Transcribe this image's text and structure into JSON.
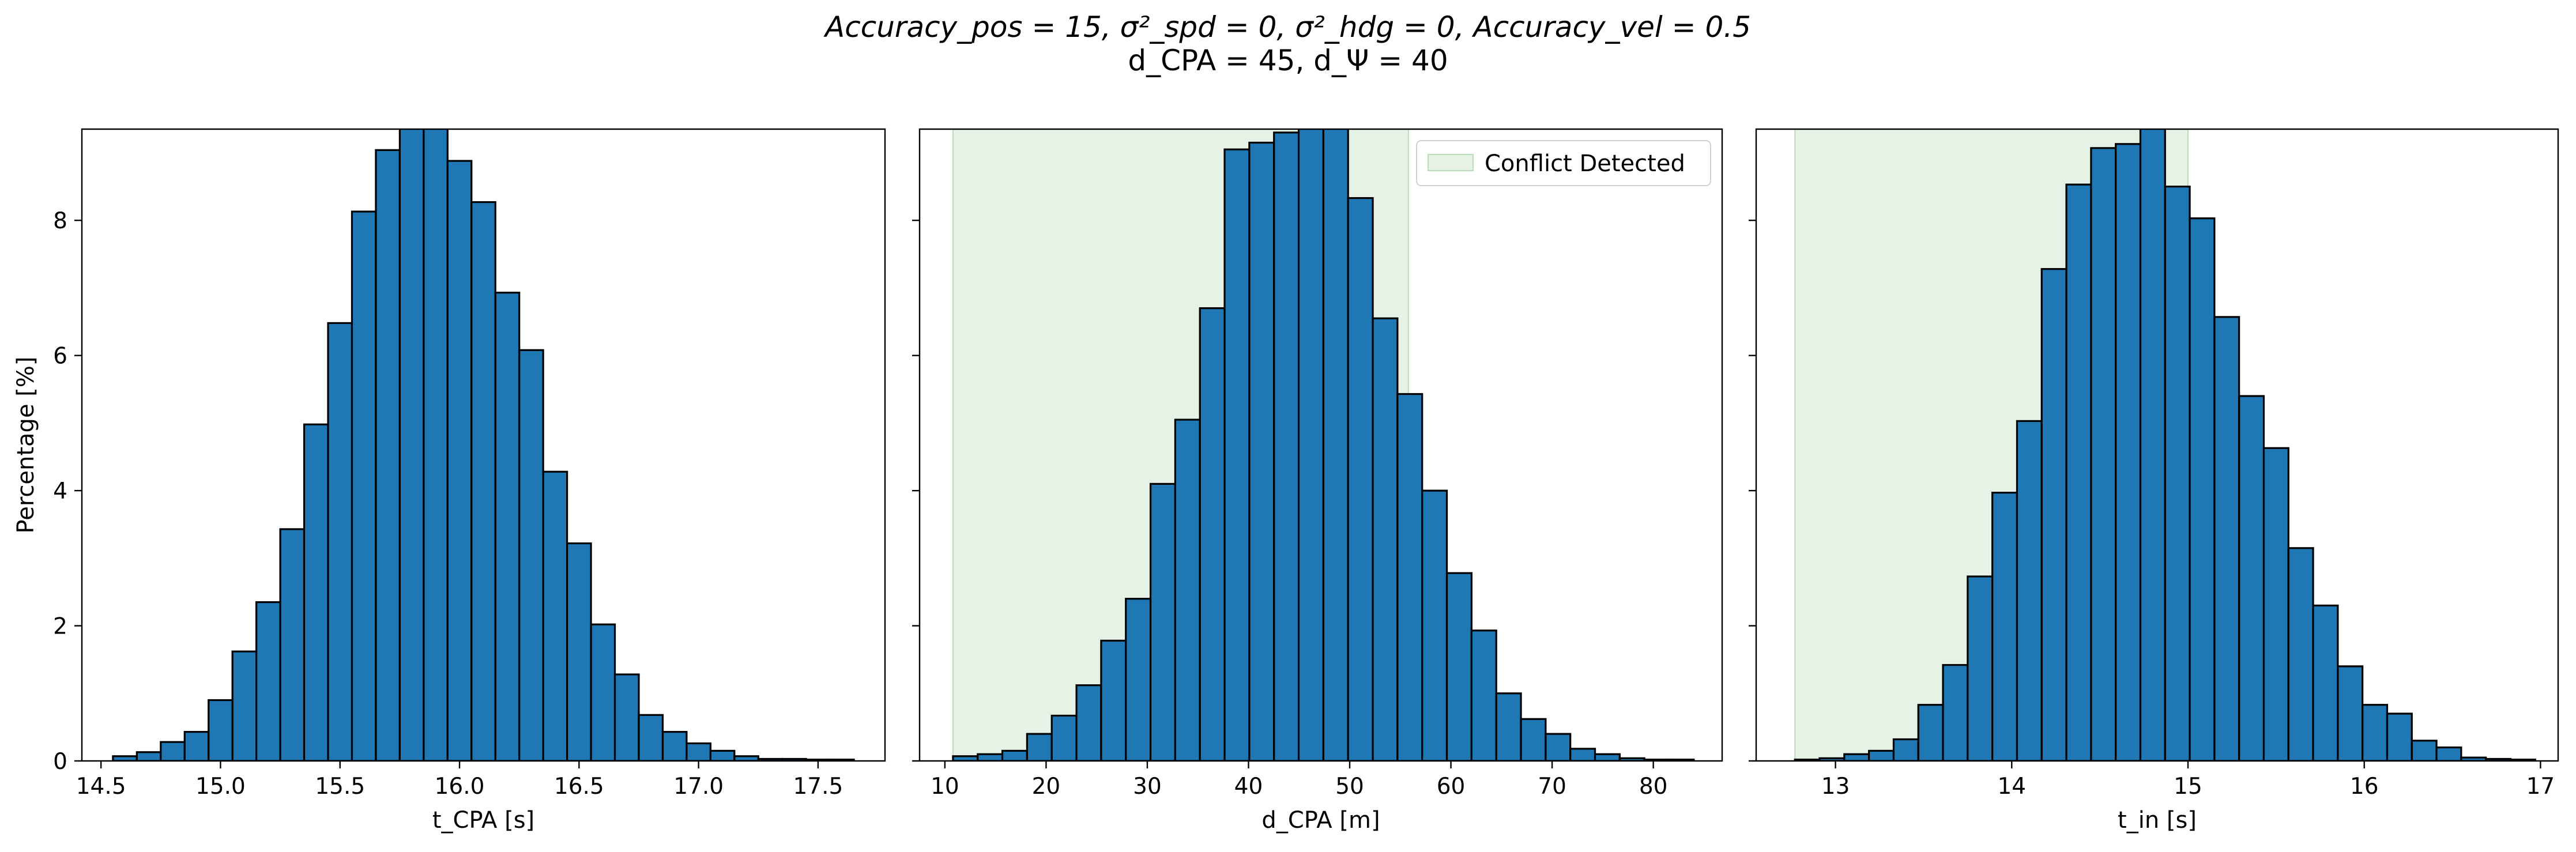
{
  "figure": {
    "title_line_1": "Accuracy_pos = 15, σ²_spd = 0, σ²_hdg = 0, Accuracy_vel = 0.5",
    "title_line_2": "d_CPA = 45, d_Ψ = 40"
  },
  "colors": {
    "bar_fill": "#1f77b4",
    "bar_edge": "#000000",
    "conflict_fill": "#e5f2e5",
    "conflict_edge": "#b9dcb9"
  },
  "chart_data": [
    {
      "type": "bar",
      "xlabel": "t_CPA [s]",
      "ylabel": "Percentage [%]",
      "xlim": [
        14.42,
        17.78
      ],
      "ylim": [
        0,
        9.35
      ],
      "xticks": [
        "14.5",
        "15.0",
        "15.5",
        "16.0",
        "16.5",
        "17.0",
        "17.5"
      ],
      "yticks": [
        "0",
        "2",
        "4",
        "6",
        "8"
      ],
      "bin_edges": [
        14.55,
        14.65,
        14.75,
        14.85,
        14.95,
        15.05,
        15.15,
        15.25,
        15.35,
        15.45,
        15.55,
        15.65,
        15.75,
        15.85,
        15.95,
        16.05,
        16.15,
        16.25,
        16.35,
        16.45,
        16.55,
        16.65,
        16.75,
        16.85,
        16.95,
        17.05,
        17.15,
        17.25,
        17.35,
        17.45,
        17.55,
        17.65
      ],
      "values": [
        0.07,
        0.13,
        0.28,
        0.43,
        0.9,
        1.62,
        2.35,
        3.43,
        4.98,
        6.48,
        8.13,
        9.04,
        9.4,
        9.4,
        8.88,
        8.27,
        6.93,
        6.08,
        4.28,
        3.22,
        2.02,
        1.28,
        0.68,
        0.43,
        0.26,
        0.15,
        0.07,
        0.03,
        0.03,
        0.02,
        0.02
      ],
      "grid": false
    },
    {
      "type": "bar",
      "xlabel": "d_CPA [m]",
      "ylabel": "",
      "xlim": [
        7.5,
        86.8
      ],
      "ylim": [
        0,
        9.35
      ],
      "xticks": [
        "10",
        "20",
        "30",
        "40",
        "50",
        "60",
        "70",
        "80"
      ],
      "yticks": [
        "0",
        "2",
        "4",
        "6",
        "8"
      ],
      "bin_edges": [
        10.8,
        13.24,
        15.68,
        18.12,
        20.56,
        23.0,
        25.44,
        27.88,
        30.32,
        32.76,
        35.2,
        37.64,
        40.08,
        42.52,
        44.96,
        47.4,
        49.84,
        52.28,
        54.72,
        57.16,
        59.6,
        62.04,
        64.48,
        66.92,
        69.36,
        71.8,
        74.24,
        76.68,
        79.12,
        81.56,
        84.0
      ],
      "values": [
        0.07,
        0.1,
        0.15,
        0.4,
        0.67,
        1.12,
        1.78,
        2.4,
        4.1,
        5.05,
        6.7,
        9.05,
        9.15,
        9.3,
        9.4,
        9.4,
        8.33,
        6.55,
        5.43,
        4.0,
        2.78,
        1.93,
        1.0,
        0.62,
        0.4,
        0.18,
        0.1,
        0.04,
        0.02,
        0.02
      ],
      "conflict_span": [
        10.8,
        55.8
      ],
      "legend": {
        "label": "Conflict Detected",
        "placement": "top-right"
      },
      "grid": false
    },
    {
      "type": "bar",
      "xlabel": "t_in [s]",
      "ylabel": "",
      "xlim": [
        12.55,
        17.1
      ],
      "ylim": [
        0,
        9.35
      ],
      "xticks": [
        "13",
        "14",
        "15",
        "16",
        "17"
      ],
      "yticks": [
        "0",
        "2",
        "4",
        "6",
        "8"
      ],
      "bin_edges": [
        12.77,
        12.91,
        13.05,
        13.19,
        13.33,
        13.47,
        13.61,
        13.75,
        13.89,
        14.03,
        14.17,
        14.31,
        14.45,
        14.59,
        14.73,
        14.87,
        15.01,
        15.15,
        15.29,
        15.43,
        15.57,
        15.71,
        15.85,
        15.99,
        16.13,
        16.27,
        16.41,
        16.55,
        16.69,
        16.83,
        16.97
      ],
      "values": [
        0.02,
        0.04,
        0.1,
        0.15,
        0.32,
        0.83,
        1.42,
        2.73,
        3.97,
        5.03,
        7.28,
        8.53,
        9.07,
        9.13,
        9.4,
        8.5,
        8.03,
        6.57,
        5.4,
        4.63,
        3.15,
        2.3,
        1.4,
        0.83,
        0.7,
        0.3,
        0.2,
        0.05,
        0.03,
        0.02
      ],
      "conflict_span": [
        12.77,
        15.0
      ],
      "grid": false
    }
  ]
}
